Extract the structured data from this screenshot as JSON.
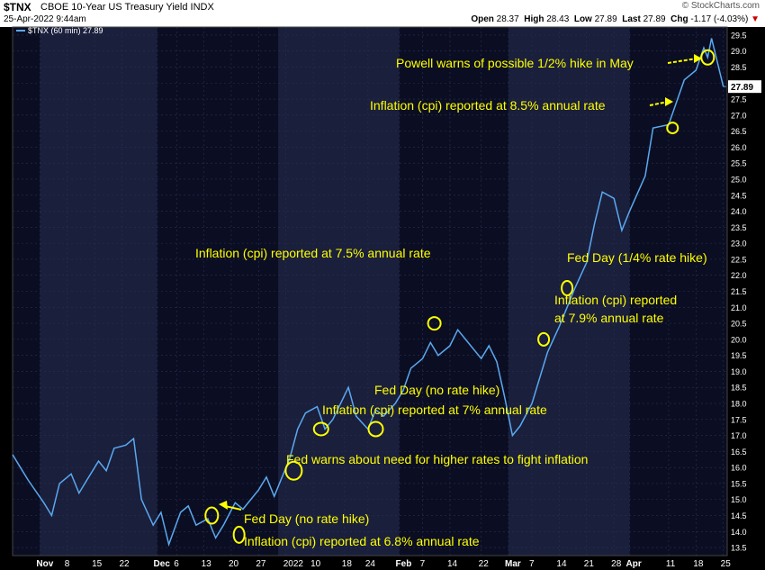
{
  "header": {
    "symbol": "$TNX",
    "description": "CBOE 10-Year US Treasury Yield",
    "exchange": "INDX",
    "datetime": "25-Apr-2022 9:44am",
    "credit": "© StockCharts.com",
    "open_label": "Open",
    "open": "28.37",
    "high_label": "High",
    "high": "28.43",
    "low_label": "Low",
    "low": "27.89",
    "last_label": "Last",
    "last": "27.89",
    "chg_label": "Chg",
    "chg": "-1.17 (-4.03%)",
    "chg_arrow": "▼"
  },
  "colors": {
    "background": "#000000",
    "plot_band_dark": "#0b0e22",
    "plot_band_light": "#1a1f3c",
    "line": "#5aa9f0",
    "annotation": "#ffff00",
    "axis_text": "#ffffff"
  },
  "chart_data": {
    "type": "line",
    "legend": "$TNX (60 min) 27.89",
    "last_value_label": "27.89",
    "ylim": [
      13.25,
      29.75
    ],
    "y_ticks": [
      "13.5",
      "14.0",
      "14.5",
      "15.0",
      "15.5",
      "16.0",
      "16.5",
      "17.0",
      "17.5",
      "18.0",
      "18.5",
      "19.0",
      "19.5",
      "20.0",
      "20.5",
      "21.0",
      "21.5",
      "22.0",
      "22.5",
      "23.0",
      "23.5",
      "24.0",
      "24.5",
      "25.0",
      "25.5",
      "26.0",
      "26.5",
      "27.0",
      "27.5",
      "28.0",
      "28.5",
      "29.0",
      "29.5"
    ],
    "x_ticks": [
      "Nov",
      "8",
      "15",
      "22",
      "Dec",
      "6",
      "13",
      "20",
      "27",
      "2022",
      "10",
      "18",
      "24",
      "Feb",
      "7",
      "14",
      "22",
      "Mar",
      "7",
      "14",
      "21",
      "28",
      "Apr",
      "11",
      "18",
      "25"
    ],
    "x_tick_dates": [
      "2021-11-01",
      "2021-11-08",
      "2021-11-15",
      "2021-11-22",
      "2021-12-01",
      "2021-12-06",
      "2021-12-13",
      "2021-12-20",
      "2021-12-27",
      "2022-01-03",
      "2022-01-10",
      "2022-01-18",
      "2022-01-24",
      "2022-02-01",
      "2022-02-07",
      "2022-02-14",
      "2022-02-22",
      "2022-03-01",
      "2022-03-07",
      "2022-03-14",
      "2022-03-21",
      "2022-03-28",
      "2022-04-01",
      "2022-04-11",
      "2022-04-18",
      "2022-04-25"
    ],
    "series": [
      {
        "x": [
          "2021-10-25",
          "2021-10-27",
          "2021-10-29",
          "2021-11-02",
          "2021-11-04",
          "2021-11-06",
          "2021-11-09",
          "2021-11-11",
          "2021-11-13",
          "2021-11-16",
          "2021-11-18",
          "2021-11-20",
          "2021-11-23",
          "2021-11-25",
          "2021-11-27",
          "2021-11-30",
          "2021-12-02",
          "2021-12-04",
          "2021-12-07",
          "2021-12-09",
          "2021-12-11",
          "2021-12-14",
          "2021-12-16",
          "2021-12-18",
          "2021-12-21",
          "2021-12-23",
          "2021-12-27",
          "2021-12-29",
          "2021-12-31",
          "2022-01-04",
          "2022-01-06",
          "2022-01-08",
          "2022-01-11",
          "2022-01-13",
          "2022-01-15",
          "2022-01-19",
          "2022-01-21",
          "2022-01-24",
          "2022-01-26",
          "2022-01-28",
          "2022-01-31",
          "2022-02-02",
          "2022-02-04",
          "2022-02-07",
          "2022-02-09",
          "2022-02-11",
          "2022-02-14",
          "2022-02-16",
          "2022-02-18",
          "2022-02-22",
          "2022-02-24",
          "2022-02-26",
          "2022-02-28",
          "2022-03-02",
          "2022-03-04",
          "2022-03-07",
          "2022-03-09",
          "2022-03-11",
          "2022-03-14",
          "2022-03-16",
          "2022-03-18",
          "2022-03-21",
          "2022-03-23",
          "2022-03-25",
          "2022-03-28",
          "2022-03-30",
          "2022-04-01",
          "2022-04-05",
          "2022-04-07",
          "2022-04-11",
          "2022-04-13",
          "2022-04-15",
          "2022-04-18",
          "2022-04-20",
          "2022-04-21",
          "2022-04-22",
          "2022-04-25"
        ],
        "values": [
          16.4,
          16.0,
          15.6,
          14.9,
          14.5,
          15.5,
          15.8,
          15.2,
          15.6,
          16.2,
          15.9,
          16.6,
          16.7,
          16.9,
          15.0,
          14.2,
          14.6,
          13.6,
          14.6,
          14.8,
          14.2,
          14.4,
          13.8,
          14.2,
          14.9,
          14.7,
          15.3,
          15.7,
          15.1,
          16.3,
          17.2,
          17.7,
          17.9,
          17.2,
          17.5,
          18.5,
          17.6,
          17.2,
          17.8,
          17.6,
          18.0,
          18.4,
          19.1,
          19.4,
          19.9,
          19.5,
          19.8,
          20.3,
          20.0,
          19.4,
          19.8,
          19.3,
          18.2,
          17.0,
          17.3,
          18.0,
          18.8,
          19.6,
          20.4,
          21.0,
          21.6,
          22.4,
          23.6,
          24.6,
          24.4,
          23.4,
          24.0,
          25.1,
          26.6,
          26.7,
          27.4,
          28.1,
          28.4,
          29.1,
          28.8,
          29.4,
          27.89
        ]
      }
    ],
    "annotations": [
      {
        "text": "Fed Day (no rate hike)",
        "x": "2021-12-15",
        "y": 14.5
      },
      {
        "text": "Inflation (cpi) reported at 6.8% annual rate",
        "x": "2021-12-22",
        "y": 13.9
      },
      {
        "text": "Fed warns about need for higher rates to fight inflation",
        "x": "2022-01-05",
        "y": 15.9
      },
      {
        "text": "Inflation (cpi) reported at 7% annual rate",
        "x": "2022-01-12",
        "y": 17.2
      },
      {
        "text": "Fed Day (no rate hike)",
        "x": "2022-01-26",
        "y": 17.2
      },
      {
        "text": "Inflation (cpi) reported at 7.5% annual rate",
        "x": "2022-02-10",
        "y": 20.5
      },
      {
        "text": "Inflation (cpi) reported",
        "x": "2022-03-10",
        "y": 20.0
      },
      {
        "text": "at 7.9% annual rate",
        "x": "2022-03-10",
        "y": 20.0
      },
      {
        "text": "Fed Day (1/4% rate hike)",
        "x": "2022-03-16",
        "y": 21.6
      },
      {
        "text": "Inflation (cpi) reported at 8.5% annual rate",
        "x": "2022-04-12",
        "y": 26.6
      },
      {
        "text": "Powell warns of possible 1/2% hike in May",
        "x": "2022-04-21",
        "y": 28.8
      }
    ]
  }
}
